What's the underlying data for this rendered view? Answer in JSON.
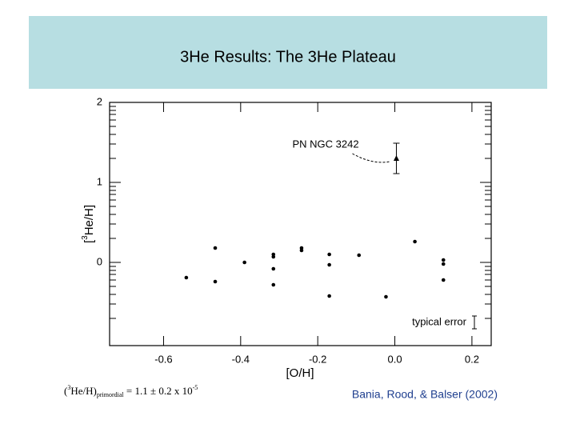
{
  "header": {
    "title": "3He Results: The 3He Plateau"
  },
  "chart_data": {
    "type": "scatter",
    "x_label": "[O/H]",
    "y_label_parts": [
      "[",
      "3",
      "He/H]"
    ],
    "xlim": [
      -0.74,
      0.25
    ],
    "ylim": [
      -1.04,
      2
    ],
    "xticks": [
      -0.6,
      -0.4,
      -0.2,
      {
        "value": 0,
        "label": "0.0"
      },
      0.2
    ],
    "yticks": [
      0,
      1,
      2
    ],
    "color": "#000000",
    "x": [
      -0.541,
      -0.466,
      -0.466,
      -0.39,
      -0.315,
      -0.315,
      -0.315,
      -0.315,
      -0.242,
      -0.242,
      -0.17,
      -0.17,
      -0.17,
      -0.093,
      -0.023,
      0.052,
      0.126,
      0.126,
      0.126
    ],
    "values": [
      -0.19,
      0.18,
      -0.24,
      0.0,
      0.1,
      0.07,
      -0.08,
      -0.28,
      0.18,
      0.15,
      0.1,
      -0.03,
      -0.42,
      0.09,
      -0.43,
      0.26,
      0.03,
      -0.02,
      -0.22
    ],
    "highlight": {
      "label": "PN NGC 3242",
      "x": 0.004,
      "y": 1.3,
      "error": 0.19
    },
    "typical_error": {
      "label": "typical error",
      "error": 0.08
    }
  },
  "footer": {
    "formula": {
      "open": "(",
      "sup": "3",
      "main": "He/H)",
      "sub": "primordial",
      "rhs": " = 1.1 ± 0.2 x 10",
      "rhs_sup": "-5"
    },
    "citation": "Bania, Rood, & Balser (2002)"
  }
}
